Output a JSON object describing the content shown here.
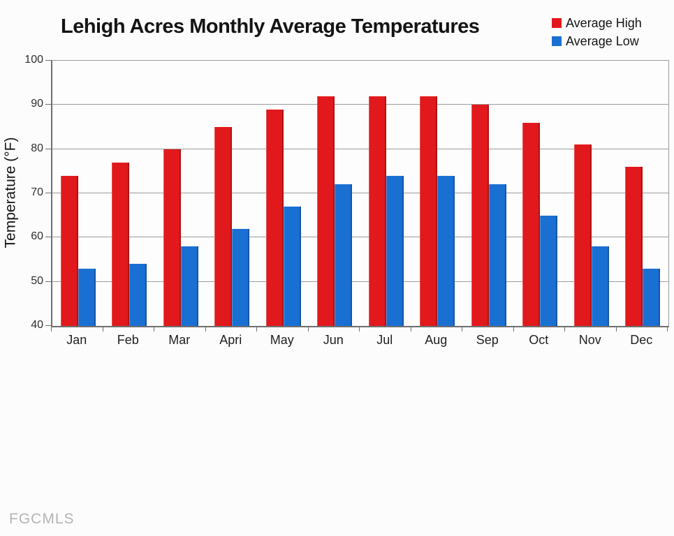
{
  "title": "Lehigh Acres Monthly Average Temperatures",
  "watermark": "FGCMLS",
  "chart_data": {
    "type": "bar",
    "title": "Lehigh Acres Monthly Average Temperatures",
    "categories": [
      "Jan",
      "Feb",
      "Mar",
      "Apri",
      "May",
      "Jun",
      "Jul",
      "Aug",
      "Sep",
      "Oct",
      "Nov",
      "Dec"
    ],
    "series": [
      {
        "name": "Average High",
        "color": "#e1191c",
        "values": [
          74,
          77,
          80,
          85,
          89,
          92,
          92,
          92,
          90,
          86,
          81,
          76
        ]
      },
      {
        "name": "Average Low",
        "color": "#1a6fd2",
        "values": [
          53,
          54,
          58,
          62,
          67,
          72,
          74,
          74,
          72,
          65,
          58,
          53
        ]
      }
    ],
    "xlabel": "",
    "ylabel": "Temperature (°F)",
    "ylim": [
      40,
      100
    ],
    "yticks": [
      40,
      50,
      60,
      70,
      80,
      90,
      100
    ],
    "grid": true,
    "legend_position": "top-right"
  },
  "colors": {
    "average_high": "#e1191c",
    "average_low": "#1a6fd2",
    "gridline": "#9b9b9b",
    "axis": "#6e6e6e",
    "watermark_text": "#b6b3b3"
  }
}
